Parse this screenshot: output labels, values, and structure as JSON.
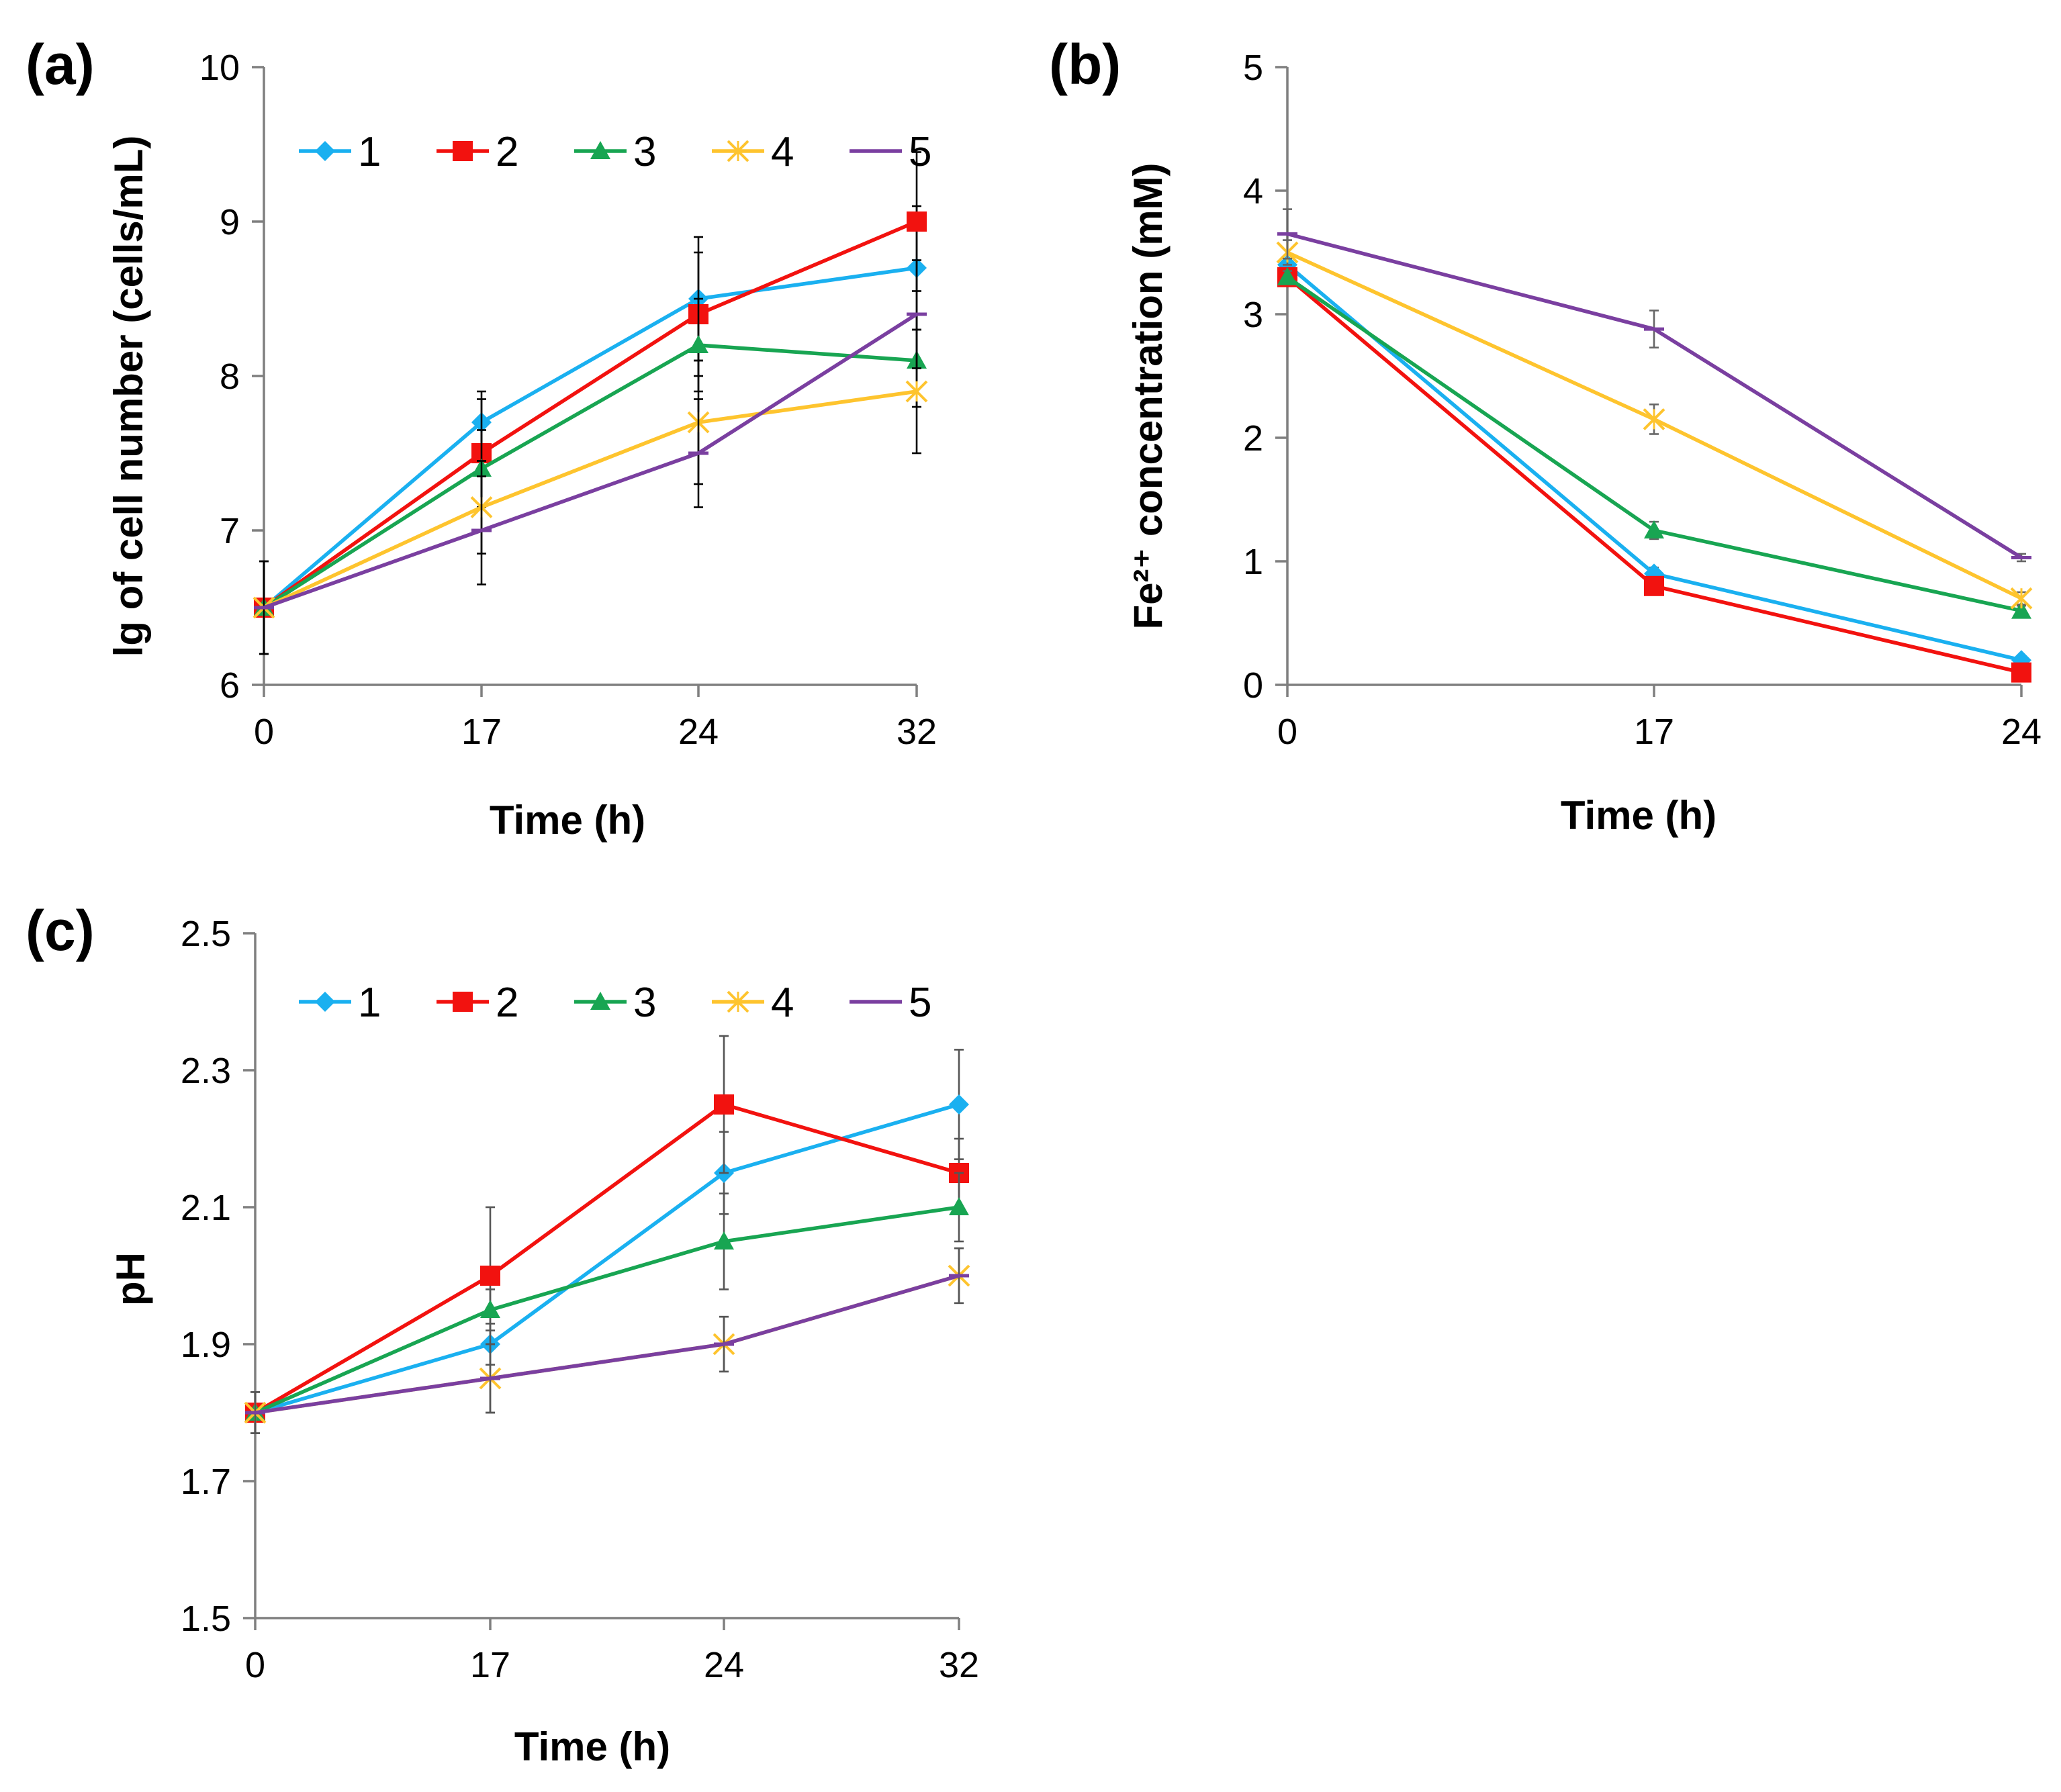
{
  "chart_data": [
    {
      "id": "a",
      "panel_label": "(a)",
      "type": "line",
      "xlabel": "Time (h)",
      "ylabel": "lg of cell number (cells/mL)",
      "categories": [
        "0",
        "17",
        "24",
        "32"
      ],
      "ylim": [
        6,
        10
      ],
      "yticks": [
        "6",
        "7",
        "8",
        "9",
        "10"
      ],
      "ytick_values": [
        6,
        7,
        8,
        9,
        10
      ],
      "legend_position": "top",
      "error_color": "#000000",
      "series": [
        {
          "name": "1",
          "color": "#1ab0f0",
          "marker": "diamond",
          "values": [
            6.5,
            7.7,
            8.5,
            8.7
          ],
          "errors": [
            0,
            0.2,
            0.4,
            0.4
          ]
        },
        {
          "name": "2",
          "color": "#f2120f",
          "marker": "square",
          "values": [
            6.5,
            7.5,
            8.4,
            9.0
          ],
          "errors": [
            0,
            0.35,
            0.4,
            0.45
          ]
        },
        {
          "name": "3",
          "color": "#18a552",
          "marker": "triangle",
          "values": [
            6.5,
            7.4,
            8.2,
            8.1
          ],
          "errors": [
            0,
            0.25,
            0.3,
            0.3
          ]
        },
        {
          "name": "4",
          "color": "#fec42e",
          "marker": "x",
          "values": [
            6.5,
            7.15,
            7.7,
            7.9
          ],
          "errors": [
            0.3,
            0.3,
            0.4,
            0.4
          ]
        },
        {
          "name": "5",
          "color": "#7a3fa0",
          "marker": "dash",
          "values": [
            6.5,
            7.0,
            7.5,
            8.4
          ],
          "errors": [
            0.3,
            0.35,
            0.35,
            0.35
          ]
        }
      ]
    },
    {
      "id": "b",
      "panel_label": "(b)",
      "type": "line",
      "xlabel": "Time (h)",
      "ylabel": "Fe²⁺ concentration (mM)",
      "categories": [
        "0",
        "17",
        "24"
      ],
      "ylim": [
        0,
        5
      ],
      "yticks": [
        "0",
        "1",
        "2",
        "3",
        "4",
        "5"
      ],
      "ytick_values": [
        0,
        1,
        2,
        3,
        4,
        5
      ],
      "error_color": "#666666",
      "series": [
        {
          "name": "1",
          "color": "#1ab0f0",
          "marker": "diamond",
          "values": [
            3.4,
            0.9,
            0.2
          ],
          "errors": [
            0.05,
            0.05,
            0.03
          ]
        },
        {
          "name": "2",
          "color": "#f2120f",
          "marker": "square",
          "values": [
            3.3,
            0.8,
            0.1
          ],
          "errors": [
            0.05,
            0.05,
            0.03
          ]
        },
        {
          "name": "3",
          "color": "#18a552",
          "marker": "triangle",
          "values": [
            3.3,
            1.25,
            0.6
          ],
          "errors": [
            0.05,
            0.07,
            0.04
          ]
        },
        {
          "name": "4",
          "color": "#fec42e",
          "marker": "x",
          "values": [
            3.5,
            2.15,
            0.7
          ],
          "errors": [
            0.1,
            0.12,
            0.05
          ]
        },
        {
          "name": "5",
          "color": "#7a3fa0",
          "marker": "dash",
          "values": [
            3.65,
            2.88,
            1.03
          ],
          "errors": [
            0.2,
            0.15,
            0.03
          ]
        }
      ]
    },
    {
      "id": "c",
      "panel_label": "(c)",
      "type": "line",
      "xlabel": "Time (h)",
      "ylabel": "pH",
      "categories": [
        "0",
        "17",
        "24",
        "32"
      ],
      "ylim": [
        1.5,
        2.5
      ],
      "yticks": [
        "1.5",
        "1.7",
        "1.9",
        "2.1",
        "2.3",
        "2.5"
      ],
      "ytick_values": [
        1.5,
        1.7,
        1.9,
        2.1,
        2.3,
        2.5
      ],
      "legend_position": "top",
      "error_color": "#555555",
      "series": [
        {
          "name": "1",
          "color": "#1ab0f0",
          "marker": "diamond",
          "values": [
            1.8,
            1.9,
            2.15,
            2.25
          ],
          "errors": [
            0,
            0.03,
            0.06,
            0.08
          ]
        },
        {
          "name": "2",
          "color": "#f2120f",
          "marker": "square",
          "values": [
            1.8,
            2.0,
            2.25,
            2.15
          ],
          "errors": [
            0,
            0.1,
            0.1,
            0.05
          ]
        },
        {
          "name": "3",
          "color": "#18a552",
          "marker": "triangle",
          "values": [
            1.8,
            1.95,
            2.05,
            2.1
          ],
          "errors": [
            0,
            0.03,
            0.07,
            0.05
          ]
        },
        {
          "name": "4",
          "color": "#fec42e",
          "marker": "x",
          "values": [
            1.8,
            1.85,
            1.9,
            2.0
          ],
          "errors": [
            0.03,
            0.05,
            0.04,
            0.04
          ]
        },
        {
          "name": "5",
          "color": "#7a3fa0",
          "marker": "dash",
          "values": [
            1.8,
            1.85,
            1.9,
            2.0
          ],
          "errors": [
            0.03,
            0.05,
            0.04,
            0.04
          ]
        }
      ]
    }
  ]
}
